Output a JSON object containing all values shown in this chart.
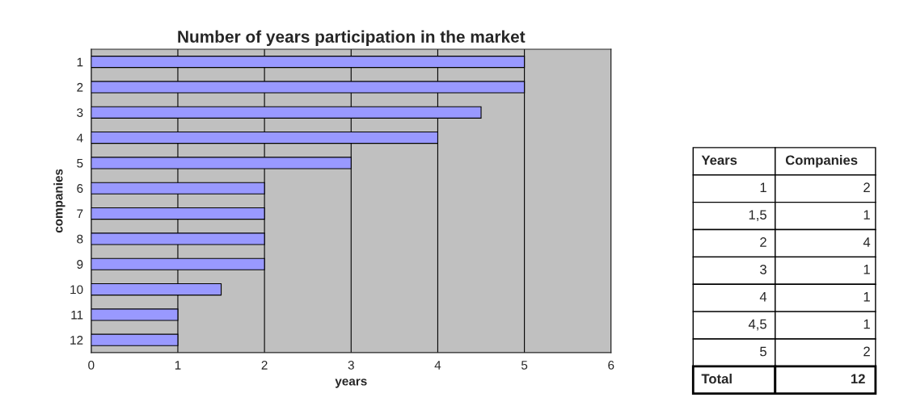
{
  "chart_data": [
    {
      "type": "bar",
      "orientation": "horizontal",
      "title": "Number of years participation in the market",
      "xlabel": "years",
      "ylabel": "companies",
      "categories": [
        "1",
        "2",
        "3",
        "4",
        "5",
        "6",
        "7",
        "8",
        "9",
        "10",
        "11",
        "12"
      ],
      "values": [
        5,
        5,
        4.5,
        4,
        3,
        2,
        2,
        2,
        2,
        1.5,
        1,
        1
      ],
      "color": "#9999ff",
      "xlim": [
        0,
        6
      ],
      "xticks": [
        0,
        1,
        2,
        3,
        4,
        5,
        6
      ],
      "grid": "x",
      "legend": false
    },
    {
      "type": "other",
      "annotations": [
        "Years",
        "Companies",
        "1",
        "2",
        "1,5",
        "1",
        "2",
        "4",
        "3",
        "1",
        "4",
        "1",
        "4,5",
        "1",
        "5",
        "2",
        "Total",
        "12"
      ]
    }
  ]
}
